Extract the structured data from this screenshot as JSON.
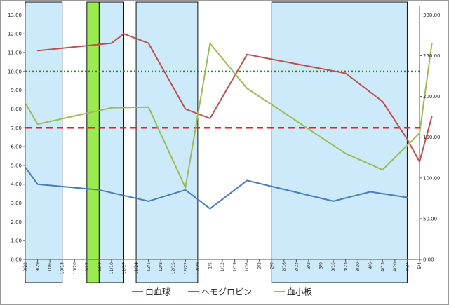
{
  "chart_data": {
    "type": "line",
    "y_left": {
      "ticks": [
        "0.00",
        "1.00",
        "2.00",
        "3.00",
        "4.00",
        "5.00",
        "6.00",
        "7.00",
        "8.00",
        "9.00",
        "10.00",
        "11.00",
        "12.00",
        "13.00"
      ],
      "range": [
        0,
        13.5
      ]
    },
    "y_right": {
      "ticks": [
        "0.00",
        "50.00",
        "100.00",
        "150.00",
        "200.00",
        "250.00",
        "300.00"
      ],
      "range": [
        0,
        311.5
      ]
    },
    "x_tick_labels": [
      "9/22",
      "9/29",
      "10/6",
      "10/13",
      "10/20",
      "10/27",
      "11/3",
      "11/10",
      "11/17",
      "11/24",
      "12/1",
      "12/8",
      "12/15",
      "12/22",
      "12/29",
      "1/5",
      "1/12",
      "1/19",
      "1/26",
      "2/2",
      "2/9",
      "2/16",
      "2/23",
      "3/2",
      "3/9",
      "3/16",
      "3/23",
      "3/30",
      "4/6",
      "4/13",
      "4/20",
      "4/27",
      "5/4"
    ],
    "shaded_ranges": [
      {
        "from": "9/22",
        "to": "10/13",
        "color": "#cdeafb"
      },
      {
        "from": "10/27",
        "to": "11/3",
        "color": "#9bea4f"
      },
      {
        "from": "11/3",
        "to": "11/17",
        "color": "#cdeafb"
      },
      {
        "from": "11/24",
        "to": "12/29",
        "color": "#cdeafb"
      },
      {
        "from": "2/9",
        "to": "4/27",
        "color": "#cdeafb"
      }
    ],
    "reference_lines": [
      {
        "axis": "left",
        "value": 7.0,
        "color": "#e8231c",
        "style": "dashed"
      },
      {
        "axis": "left",
        "value": 10.0,
        "color": "#1f8f1f",
        "style": "dotted"
      }
    ],
    "series": [
      {
        "name": "白血球",
        "axis": "left",
        "color": "#4a7ebb",
        "points": [
          [
            0,
            4.9
          ],
          [
            1,
            4.0
          ],
          [
            6,
            3.7
          ],
          [
            8,
            3.4
          ],
          [
            10,
            3.1
          ],
          [
            13,
            3.7
          ],
          [
            15,
            2.7
          ],
          [
            18,
            4.2
          ],
          [
            25,
            3.1
          ],
          [
            28,
            3.6
          ],
          [
            31,
            3.3
          ]
        ]
      },
      {
        "name": "ヘモグロビン",
        "axis": "left",
        "color": "#c0504d",
        "points": [
          [
            1,
            11.1
          ],
          [
            7,
            11.5
          ],
          [
            8,
            12.0
          ],
          [
            10,
            11.5
          ],
          [
            13,
            8.0
          ],
          [
            15,
            7.5
          ],
          [
            18,
            10.9
          ],
          [
            26,
            9.9
          ],
          [
            29,
            8.4
          ],
          [
            31,
            6.4
          ],
          [
            32,
            5.2
          ],
          [
            33,
            7.6
          ]
        ]
      },
      {
        "name": "血小板",
        "axis": "right",
        "color": "#9bbb59",
        "points": [
          [
            0,
            192
          ],
          [
            1,
            166
          ],
          [
            7,
            186
          ],
          [
            10,
            187
          ],
          [
            13,
            88
          ],
          [
            15,
            265
          ],
          [
            18,
            210
          ],
          [
            26,
            130
          ],
          [
            29,
            110
          ],
          [
            32,
            155
          ],
          [
            33,
            265
          ]
        ]
      }
    ]
  }
}
